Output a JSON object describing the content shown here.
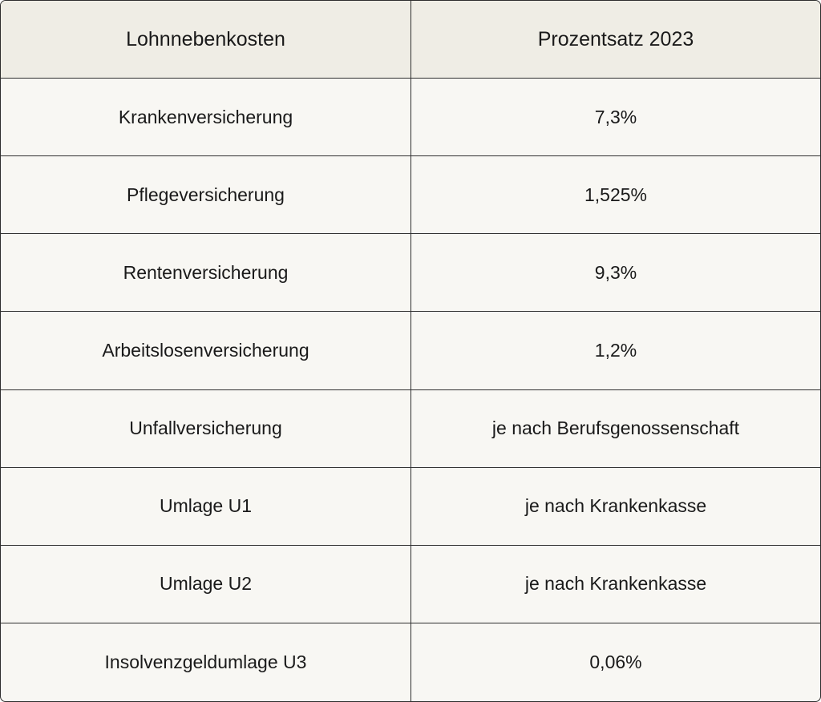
{
  "table": {
    "header": [
      "Lohnnebenkosten",
      "Prozentsatz 2023"
    ],
    "rows": [
      [
        "Krankenversicherung",
        "7,3%"
      ],
      [
        "Pflegeversicherung",
        "1,525%"
      ],
      [
        "Rentenversicherung",
        "9,3%"
      ],
      [
        "Arbeitslosenversicherung",
        "1,2%"
      ],
      [
        "Unfallversicherung",
        "je nach Berufsgenossenschaft"
      ],
      [
        "Umlage U1",
        "je nach Krankenkasse"
      ],
      [
        "Umlage U2",
        "je nach Krankenkasse"
      ],
      [
        "Insolvenzgeldumlage U3",
        "0,06%"
      ]
    ]
  }
}
